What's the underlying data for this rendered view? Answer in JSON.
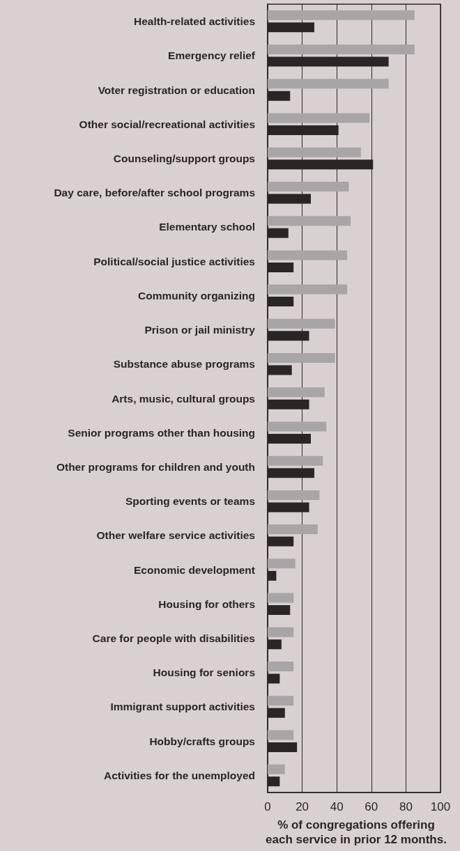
{
  "chart_data": {
    "type": "bar",
    "orientation": "horizontal",
    "xlabel": "% of congregations offering each service in prior 12 months.",
    "categories": [
      "Health-related activities",
      "Emergency relief",
      "Voter registration or education",
      "Other social/recreational activities",
      "Counseling/support groups",
      "Day care, before/after school programs",
      "Elementary school",
      "Political/social justice activities",
      "Community organizing",
      "Prison or jail ministry",
      "Substance abuse programs",
      "Arts, music, cultural groups",
      "Senior programs other than housing",
      "Other programs for children and youth",
      "Sporting events or teams",
      "Other welfare service activities",
      "Economic development",
      "Housing for others",
      "Care for people with disabilities",
      "Housing for seniors",
      "Immigrant support activities",
      "Hobby/crafts groups",
      "Activities for the unemployed"
    ],
    "series": [
      {
        "color": "#a9a5a7",
        "values": [
          85,
          85,
          70,
          59,
          54,
          47,
          48,
          46,
          46,
          39,
          39,
          33,
          34,
          32,
          30,
          29,
          16,
          15,
          15,
          15,
          15,
          15,
          10
        ]
      },
      {
        "color": "#2b2526",
        "values": [
          27,
          70,
          13,
          41,
          61,
          25,
          12,
          15,
          15,
          24,
          14,
          24,
          25,
          27,
          24,
          15,
          5,
          13,
          8,
          7,
          10,
          17,
          7
        ]
      }
    ],
    "xlim": [
      0,
      100
    ],
    "xticks": [
      0,
      20,
      40,
      60,
      80,
      100
    ],
    "grid": "x"
  }
}
